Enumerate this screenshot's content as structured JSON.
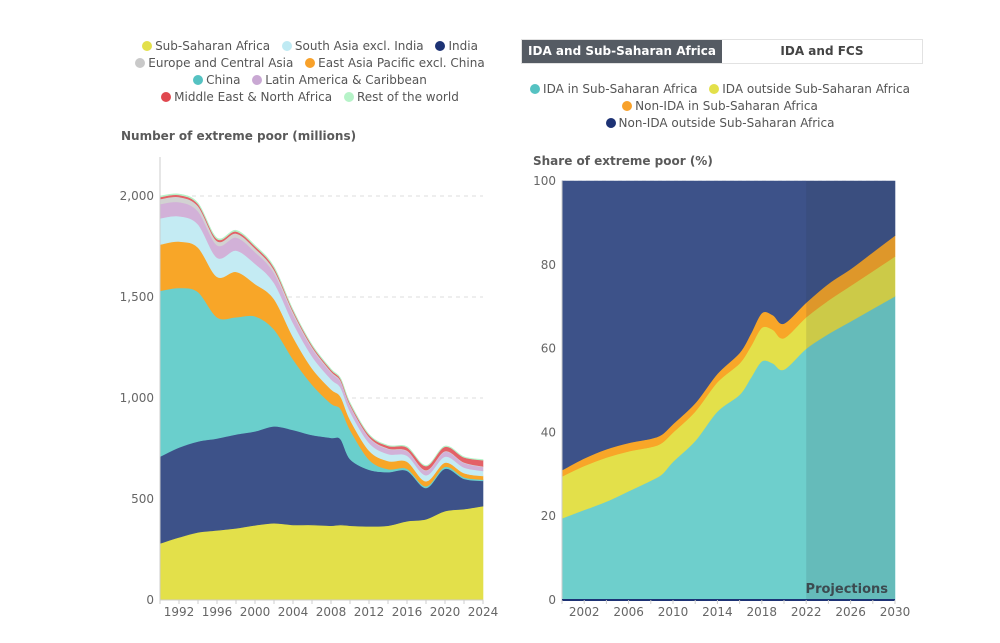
{
  "left_legend": [
    {
      "label": "Sub-Saharan Africa",
      "color": "#e3e04a"
    },
    {
      "label": "South Asia excl. India",
      "color": "#bfeaf3"
    },
    {
      "label": "India",
      "color": "#1d3274"
    },
    {
      "label": "Europe and Central Asia",
      "color": "#c9c9c9"
    },
    {
      "label": "East Asia Pacific excl. China",
      "color": "#f8a12a"
    },
    {
      "label": "China",
      "color": "#55c2c2"
    },
    {
      "label": "Latin America & Caribbean",
      "color": "#c9a8d3"
    },
    {
      "label": "Middle East & North Africa",
      "color": "#e0484f"
    },
    {
      "label": "Rest of the world",
      "color": "#b6f3c8"
    }
  ],
  "tabs": [
    {
      "label": "IDA and Sub-Saharan Africa",
      "active": true
    },
    {
      "label": "IDA and FCS",
      "active": false
    }
  ],
  "right_legend": [
    {
      "label": "IDA in Sub-Saharan Africa",
      "color": "#55c2c2"
    },
    {
      "label": "IDA outside Sub-Saharan Africa",
      "color": "#e3e04a"
    },
    {
      "label": "Non-IDA in Sub-Saharan Africa",
      "color": "#f8a12a"
    },
    {
      "label": "Non-IDA outside Sub-Saharan Africa",
      "color": "#1d3274"
    }
  ],
  "chart_data": [
    {
      "type": "area",
      "stacked": true,
      "title": "Number of extreme poor (millions)",
      "xlabel": "",
      "ylabel": "Number of extreme poor (millions)",
      "xlim": [
        1990,
        2024
      ],
      "ylim": [
        0,
        2200
      ],
      "yticks": [
        0,
        500,
        1000,
        1500,
        2000
      ],
      "ytick_labels": [
        "0",
        "500",
        "1,000",
        "1,500",
        "2,000"
      ],
      "xticks": [
        1992,
        1996,
        2000,
        2004,
        2008,
        2012,
        2016,
        2020,
        2024
      ],
      "grid": true,
      "x": [
        1990,
        1992,
        1994,
        1996,
        1998,
        2000,
        2002,
        2004,
        2006,
        2008,
        2009,
        2010,
        2012,
        2014,
        2016,
        2018,
        2020,
        2022,
        2024
      ],
      "series": [
        {
          "name": "Sub-Saharan Africa",
          "color": "#e3e04a",
          "values": [
            280,
            310,
            335,
            345,
            355,
            370,
            380,
            372,
            372,
            368,
            372,
            368,
            365,
            368,
            390,
            400,
            440,
            450,
            465
          ]
        },
        {
          "name": "India",
          "color": "#3d5289",
          "values": [
            430,
            445,
            450,
            455,
            465,
            465,
            480,
            470,
            445,
            435,
            425,
            330,
            280,
            265,
            250,
            155,
            210,
            150,
            125
          ]
        },
        {
          "name": "China",
          "color": "#6acfcc",
          "values": [
            820,
            790,
            740,
            600,
            580,
            570,
            480,
            350,
            250,
            170,
            150,
            145,
            50,
            15,
            10,
            8,
            10,
            8,
            6
          ]
        },
        {
          "name": "East Asia Pacific excl. China",
          "color": "#f8a628",
          "values": [
            230,
            230,
            220,
            200,
            225,
            160,
            150,
            110,
            80,
            70,
            60,
            50,
            45,
            40,
            35,
            25,
            20,
            20,
            18
          ]
        },
        {
          "name": "South Asia excl. India",
          "color": "#c4ebf3",
          "values": [
            130,
            125,
            115,
            95,
            105,
            100,
            80,
            70,
            60,
            50,
            45,
            40,
            38,
            35,
            30,
            30,
            30,
            28,
            25
          ]
        },
        {
          "name": "Latin America & Caribbean",
          "color": "#d2b1d8",
          "values": [
            70,
            70,
            65,
            62,
            65,
            58,
            50,
            42,
            38,
            33,
            30,
            28,
            26,
            24,
            22,
            22,
            24,
            22,
            20
          ]
        },
        {
          "name": "Europe and Central Asia",
          "color": "#d2d2d2",
          "values": [
            25,
            25,
            25,
            20,
            20,
            18,
            15,
            12,
            8,
            6,
            5,
            5,
            4,
            4,
            3,
            3,
            3,
            3,
            3
          ]
        },
        {
          "name": "Middle East & North Africa",
          "color": "#e46167",
          "values": [
            10,
            10,
            10,
            10,
            10,
            10,
            10,
            8,
            8,
            8,
            8,
            8,
            10,
            12,
            16,
            20,
            22,
            25,
            30
          ]
        },
        {
          "name": "Rest of the world",
          "color": "#b6f3c8",
          "values": [
            5,
            5,
            5,
            5,
            5,
            5,
            5,
            4,
            4,
            4,
            4,
            4,
            3,
            3,
            3,
            3,
            3,
            3,
            3
          ]
        }
      ]
    },
    {
      "type": "area",
      "stacked": true,
      "title": "Share of extreme poor (%)",
      "xlabel": "",
      "ylabel": "Share of extreme poor (%)",
      "xlim": [
        2000,
        2030
      ],
      "ylim": [
        0,
        100
      ],
      "yticks": [
        0,
        20,
        40,
        60,
        80,
        100
      ],
      "xticks": [
        2002,
        2006,
        2010,
        2014,
        2018,
        2022,
        2026,
        2030
      ],
      "grid": true,
      "annotation": {
        "label": "Projections",
        "from": 2022,
        "to": 2030
      },
      "x": [
        2000,
        2002,
        2004,
        2006,
        2008,
        2009,
        2010,
        2012,
        2014,
        2016,
        2017,
        2018,
        2019,
        2020,
        2022,
        2024,
        2026,
        2028,
        2030
      ],
      "series": [
        {
          "name": "IDA in Sub-Saharan Africa",
          "color": "#6ecfcc",
          "values": [
            19.5,
            21.5,
            23.5,
            26,
            28.5,
            30,
            33,
            38,
            45,
            49,
            53,
            57,
            56.5,
            55,
            60,
            63.5,
            66.5,
            69.5,
            72.5
          ]
        },
        {
          "name": "IDA outside Sub-Saharan Africa",
          "color": "#e3e04a",
          "values": [
            10,
            10.5,
            10.5,
            9.5,
            8,
            7.5,
            7,
            7,
            7,
            7.5,
            7.5,
            8,
            8,
            7.5,
            7.5,
            8,
            8.5,
            9,
            9.5
          ]
        },
        {
          "name": "Non-IDA in Sub-Saharan Africa",
          "color": "#f8a628",
          "values": [
            1.5,
            1.8,
            2,
            2,
            2,
            2,
            2,
            2,
            2,
            2.5,
            3,
            3.5,
            3.5,
            3.5,
            3.5,
            4,
            4,
            4.5,
            5
          ]
        },
        {
          "name": "Non-IDA outside Sub-Saharan Africa",
          "color": "#3d5289",
          "values": [
            69,
            66.2,
            64,
            62.5,
            61.5,
            60.5,
            58,
            53,
            46,
            41,
            36.5,
            31.5,
            32,
            34,
            29,
            24.5,
            21,
            17,
            13
          ]
        }
      ]
    }
  ]
}
